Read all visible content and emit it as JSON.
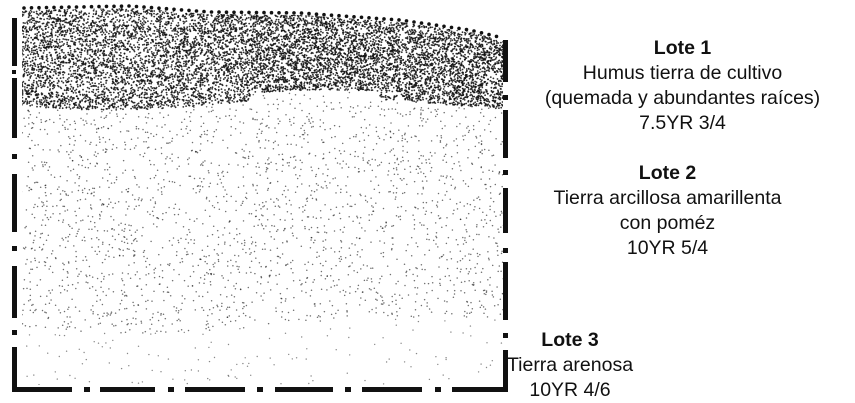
{
  "layers": [
    {
      "id": "lote1",
      "title": "Lote 1",
      "lines": [
        "Humus tierra de cultivo",
        "(quemada y abundantes raíces)",
        "7.5YR 3/4"
      ],
      "texture": "dense-dark-stipple"
    },
    {
      "id": "lote2",
      "title": "Lote 2",
      "lines": [
        "Tierra arcillosa amarillenta",
        "con poméz",
        "10YR 5/4"
      ],
      "texture": "medium-stipple"
    },
    {
      "id": "lote3",
      "title": "Lote 3",
      "lines": [
        "Tierra arenosa",
        "10YR 4/6"
      ],
      "texture": "sparse-stipple"
    }
  ],
  "colors": {
    "ink": "#111111",
    "background": "#ffffff"
  }
}
